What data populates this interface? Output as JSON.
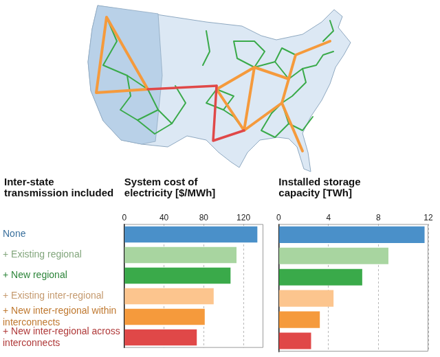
{
  "chart_data": [
    {
      "type": "bar",
      "orientation": "horizontal",
      "title": "System cost of electricity [$/MWh]",
      "ylabel": "Inter-state transmission included",
      "categories": [
        "None",
        "+ Existing regional",
        "+ New regional",
        "+ Existing inter-regional",
        "+ New inter-regional within interconnects",
        "+ New inter-regional across interconnects"
      ],
      "values": [
        134,
        113,
        107,
        90,
        81,
        73
      ],
      "colors": [
        "#4a90c9",
        "#a8d5a0",
        "#3aaa4a",
        "#fcc58e",
        "#f59a3c",
        "#e04848"
      ],
      "xlim": [
        0,
        140
      ],
      "xticks": [
        0,
        40,
        80,
        120
      ],
      "grid": true
    },
    {
      "type": "bar",
      "orientation": "horizontal",
      "title": "Installed storage capacity [TWh]",
      "categories": [
        "None",
        "+ Existing regional",
        "+ New regional",
        "+ Existing inter-regional",
        "+ New inter-regional within interconnects",
        "+ New inter-regional across interconnects"
      ],
      "values": [
        11.7,
        8.8,
        6.7,
        4.4,
        3.3,
        2.6
      ],
      "colors": [
        "#4a90c9",
        "#a8d5a0",
        "#3aaa4a",
        "#fcc58e",
        "#f59a3c",
        "#e04848"
      ],
      "xlim": [
        0,
        12
      ],
      "xticks": [
        0,
        4,
        8,
        12
      ],
      "grid": true,
      "tick_labels": "x"
    }
  ]
}
